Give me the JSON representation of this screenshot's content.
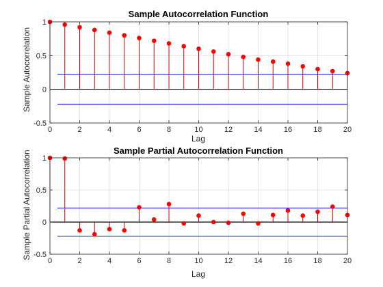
{
  "chart_data": [
    {
      "type": "stem",
      "title": "Sample Autocorrelation Function",
      "xlabel": "Lag",
      "ylabel": "Sample Autocorrelation",
      "xlim": [
        0,
        20
      ],
      "ylim": [
        -0.5,
        1
      ],
      "xticks": [
        0,
        2,
        4,
        6,
        8,
        10,
        12,
        14,
        16,
        18,
        20
      ],
      "yticks": [
        -0.5,
        0,
        0.5,
        1
      ],
      "grid": true,
      "confidence_bounds": [
        0.22,
        -0.22
      ],
      "colors": {
        "stem": "#cc0000",
        "marker": "#ff0000",
        "bounds": "#0000ff",
        "zero": "#000000"
      },
      "x": [
        0,
        1,
        2,
        3,
        4,
        5,
        6,
        7,
        8,
        9,
        10,
        11,
        12,
        13,
        14,
        15,
        16,
        17,
        18,
        19,
        20
      ],
      "values": [
        1.0,
        0.96,
        0.92,
        0.88,
        0.84,
        0.8,
        0.76,
        0.72,
        0.68,
        0.64,
        0.6,
        0.56,
        0.52,
        0.48,
        0.44,
        0.41,
        0.38,
        0.34,
        0.3,
        0.27,
        0.24
      ]
    },
    {
      "type": "stem",
      "title": "Sample Partial Autocorrelation Function",
      "xlabel": "Lag",
      "ylabel": "Sample Partial Autocorrelation",
      "xlim": [
        0,
        20
      ],
      "ylim": [
        -0.5,
        1
      ],
      "xticks": [
        0,
        2,
        4,
        6,
        8,
        10,
        12,
        14,
        16,
        18,
        20
      ],
      "yticks": [
        -0.5,
        0,
        0.5,
        1
      ],
      "grid": true,
      "confidence_bounds": [
        0.22,
        -0.22
      ],
      "colors": {
        "stem": "#cc0000",
        "marker": "#ff0000",
        "bounds": "#0000ff",
        "zero": "#000000"
      },
      "x": [
        0,
        1,
        2,
        3,
        4,
        5,
        6,
        7,
        8,
        9,
        10,
        11,
        12,
        13,
        14,
        15,
        16,
        17,
        18,
        19,
        20
      ],
      "values": [
        1.0,
        0.99,
        -0.13,
        -0.19,
        -0.11,
        -0.13,
        0.23,
        0.04,
        0.28,
        -0.02,
        0.1,
        0.0,
        -0.01,
        0.13,
        -0.02,
        0.11,
        0.18,
        0.1,
        0.16,
        0.24,
        0.11
      ]
    }
  ]
}
